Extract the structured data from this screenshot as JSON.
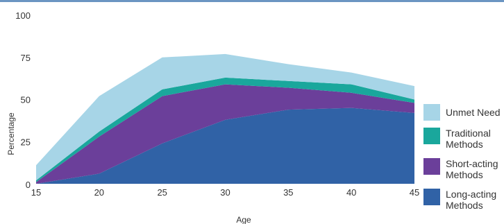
{
  "chart_data": {
    "type": "area",
    "stacked": true,
    "x": [
      15,
      20,
      25,
      30,
      35,
      40,
      45
    ],
    "xlabel": "Age",
    "ylabel": "Percentage",
    "ylim": [
      0,
      100
    ],
    "yticks": [
      "0",
      "25",
      "50",
      "75",
      "100"
    ],
    "xticks": [
      "15",
      "20",
      "25",
      "30",
      "35",
      "40",
      "45"
    ],
    "series": [
      {
        "name": "Long-acting Methods",
        "color": "#3062a6",
        "values": [
          0,
          6,
          24,
          38,
          44,
          45,
          42
        ]
      },
      {
        "name": "Short-acting Methods",
        "color": "#6b3f9a",
        "values": [
          1,
          22,
          28,
          21,
          13,
          9,
          6
        ]
      },
      {
        "name": "Traditional Methods",
        "color": "#1aa79c",
        "values": [
          1,
          3,
          4,
          4,
          4,
          5,
          2
        ]
      },
      {
        "name": "Unmet Need",
        "color": "#a7d5e7",
        "values": [
          9,
          21,
          19,
          14,
          10,
          7,
          8
        ]
      }
    ],
    "legend": [
      {
        "label": "Unmet Need",
        "color": "#a7d5e7"
      },
      {
        "label": "Traditional Methods",
        "color": "#1aa79c"
      },
      {
        "label": "Short-acting Methods",
        "color": "#6b3f9a"
      },
      {
        "label": "Long-acting Methods",
        "color": "#3062a6"
      }
    ],
    "legend_position": "right",
    "grid": false
  }
}
